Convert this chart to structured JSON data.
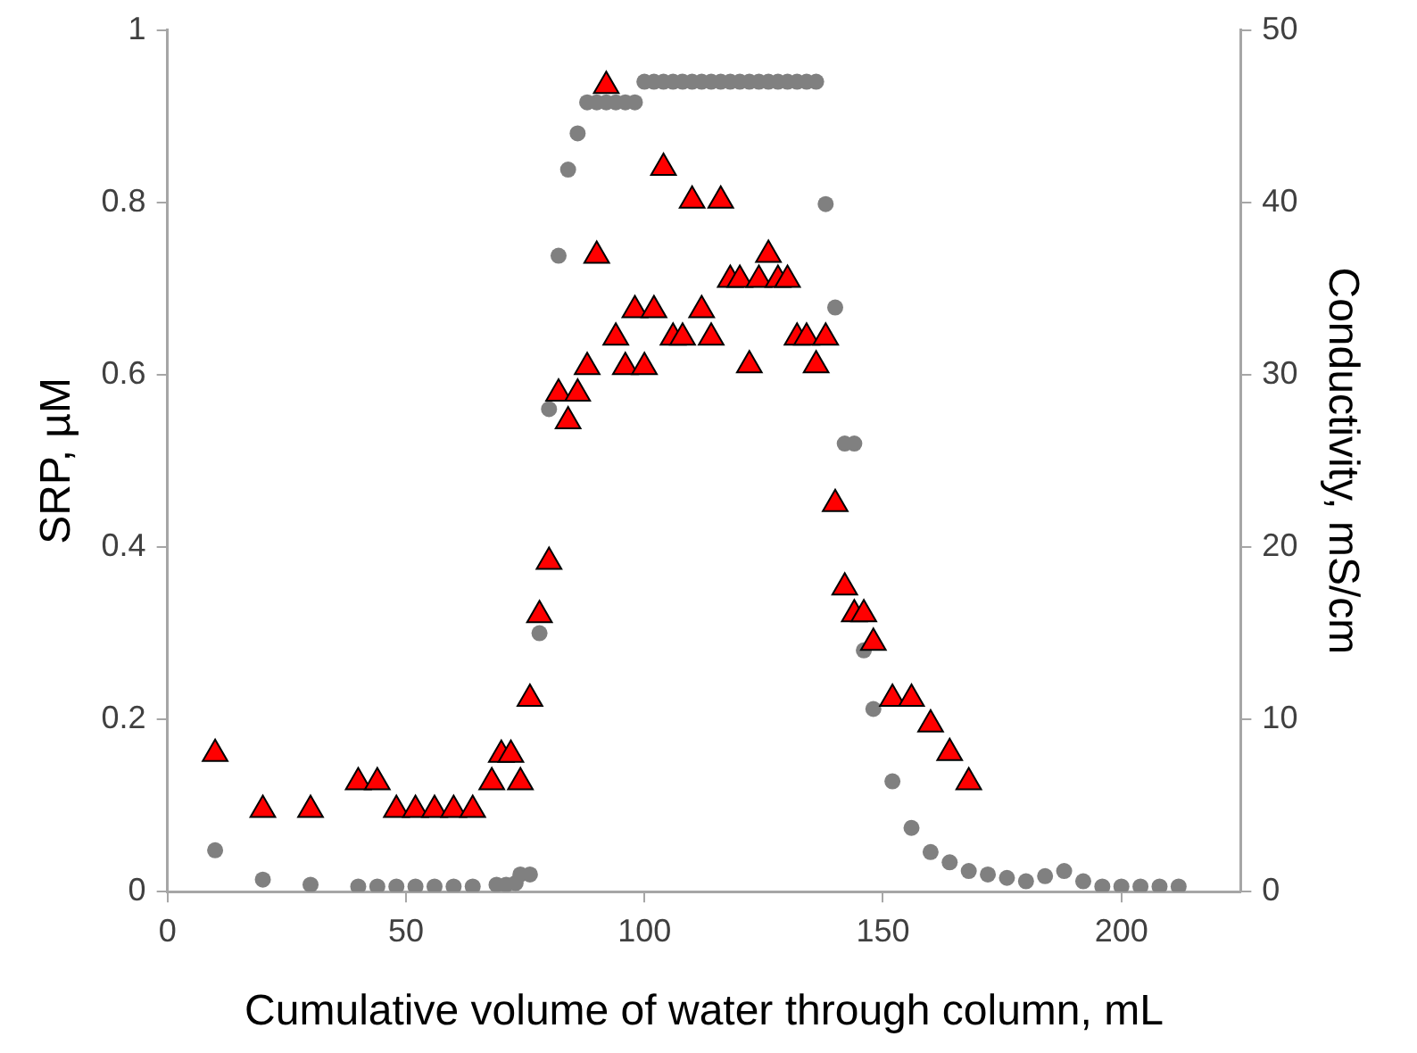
{
  "chart_data": {
    "type": "scatter",
    "xlabel": "Cumulative volume of water through column, mL",
    "ylabel": "SRP, µM",
    "y2label": "Conductivity, mS/cm",
    "xlim": [
      0,
      225
    ],
    "xticks": [
      0,
      50,
      100,
      150,
      200
    ],
    "ylim": [
      0,
      1
    ],
    "yticks": [
      0,
      0.2,
      0.4,
      0.6,
      0.8,
      1
    ],
    "y2lim": [
      0,
      50
    ],
    "y2ticks": [
      0,
      10,
      20,
      30,
      40,
      50
    ],
    "grid": false,
    "legend": false,
    "series": [
      {
        "color": "#808080",
        "marker": "circle",
        "axis": "y2",
        "x": [
          10,
          20,
          30,
          40,
          44,
          48,
          52,
          56,
          60,
          64,
          69,
          71,
          73,
          74,
          76,
          78,
          80,
          82,
          84,
          86,
          88,
          90,
          92,
          94,
          96,
          98,
          100,
          102,
          104,
          106,
          108,
          110,
          112,
          114,
          116,
          118,
          120,
          122,
          124,
          126,
          128,
          130,
          132,
          134,
          136,
          138,
          140,
          142,
          144,
          146,
          148,
          152,
          156,
          160,
          164,
          168,
          172,
          176,
          180,
          184,
          188,
          192,
          196,
          200,
          204,
          208,
          212
        ],
        "values": [
          2.4,
          0.7,
          0.4,
          0.3,
          0.3,
          0.3,
          0.3,
          0.3,
          0.3,
          0.3,
          0.4,
          0.4,
          0.5,
          1,
          1,
          15,
          28,
          36.9,
          41.9,
          44,
          45.8,
          45.8,
          45.8,
          45.8,
          45.8,
          45.8,
          47,
          47,
          47,
          47,
          47,
          47,
          47,
          47,
          47,
          47,
          47,
          47,
          47,
          47,
          47,
          47,
          47,
          47,
          47,
          39.9,
          33.9,
          26,
          26,
          14,
          10.6,
          6.4,
          3.7,
          2.3,
          1.7,
          1.2,
          1,
          0.8,
          0.6,
          0.9,
          1.2,
          0.6,
          0.3,
          0.3,
          0.3,
          0.3,
          0.3
        ]
      },
      {
        "color": "#ff0000",
        "marker": "triangle",
        "axis": "y",
        "x": [
          10,
          20,
          30,
          40,
          44,
          48,
          52,
          56,
          60,
          64,
          68,
          70,
          72,
          74,
          76,
          78,
          80,
          82,
          84,
          86,
          88,
          90,
          92,
          94,
          96,
          98,
          100,
          102,
          104,
          106,
          108,
          110,
          112,
          114,
          116,
          118,
          120,
          122,
          124,
          126,
          128,
          130,
          132,
          134,
          136,
          138,
          140,
          142,
          144,
          146,
          148,
          152,
          156,
          160,
          164,
          168
        ],
        "values": [
          0.16,
          0.095,
          0.095,
          0.127,
          0.127,
          0.095,
          0.095,
          0.095,
          0.095,
          0.095,
          0.127,
          0.159,
          0.159,
          0.127,
          0.224,
          0.321,
          0.383,
          0.578,
          0.546,
          0.578,
          0.609,
          0.738,
          0.935,
          0.643,
          0.609,
          0.675,
          0.609,
          0.675,
          0.84,
          0.643,
          0.643,
          0.802,
          0.675,
          0.643,
          0.802,
          0.71,
          0.71,
          0.611,
          0.71,
          0.739,
          0.71,
          0.71,
          0.643,
          0.643,
          0.611,
          0.643,
          0.45,
          0.353,
          0.322,
          0.322,
          0.289,
          0.224,
          0.224,
          0.194,
          0.161,
          0.127
        ]
      }
    ]
  }
}
